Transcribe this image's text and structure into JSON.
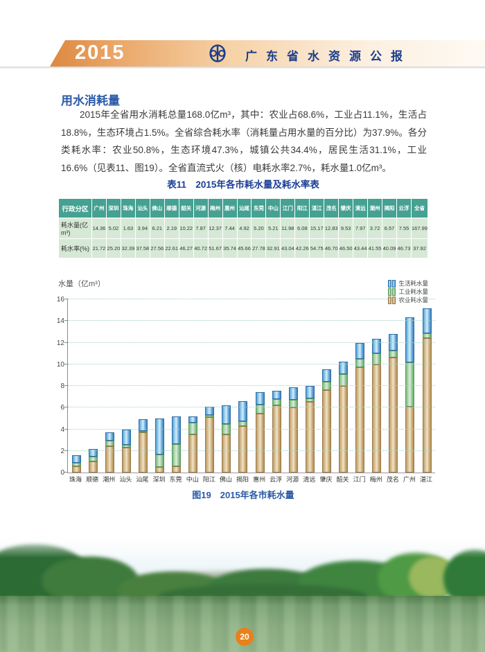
{
  "page": {
    "number": "20"
  },
  "header": {
    "year": "2015",
    "title": "广东省水资源公报",
    "logo": "water-bureau-logo"
  },
  "section": {
    "heading": "用水消耗量",
    "paragraph": "2015年全省用水消耗总量168.0亿m³，其中：农业占68.6%，工业占11.1%，生活占18.8%，生态环境占1.5%。全省综合耗水率（消耗量占用水量的百分比）为37.9%。各分类耗水率：农业50.8%，生态环境47.3%，城镇公共34.4%，居民生活31.1%，工业16.6%（见表11、图19）。全省直流式火（核）电耗水率2.7%，耗水量1.0亿m³。"
  },
  "table": {
    "title": "表11　2015年各市耗水量及耗水率表",
    "headers": [
      "行政分区",
      "广州",
      "深圳",
      "珠海",
      "汕头",
      "佛山",
      "顺德",
      "韶关",
      "河源",
      "梅州",
      "惠州",
      "汕尾",
      "东莞",
      "中山",
      "江门",
      "阳江",
      "湛江",
      "茂名",
      "肇庆",
      "清远",
      "潮州",
      "揭阳",
      "云浮",
      "全省"
    ],
    "rows": [
      {
        "label": "耗水量(亿m³)",
        "values": [
          "14.36",
          "5.02",
          "1.63",
          "3.94",
          "6.21",
          "2.19",
          "10.22",
          "7.87",
          "12.37",
          "7.44",
          "4.92",
          "5.20",
          "5.21",
          "11.98",
          "6.08",
          "15.17",
          "12.83",
          "9.53",
          "7.97",
          "3.72",
          "6.57",
          "7.55",
          "167.99"
        ]
      },
      {
        "label": "耗水率(%)",
        "values": [
          "21.72",
          "25.20",
          "32.39",
          "37.58",
          "27.56",
          "22.61",
          "46.27",
          "40.72",
          "51.67",
          "35.74",
          "45.66",
          "27.78",
          "32.91",
          "43.04",
          "42.26",
          "54.75",
          "46.70",
          "46.50",
          "43.44",
          "41.55",
          "40.09",
          "46.73",
          "37.92"
        ]
      }
    ]
  },
  "chart_data": {
    "type": "bar",
    "stacked": true,
    "title": "图19　2015年各市耗水量",
    "ylabel": "水量（亿m³）",
    "xlabel": "",
    "ylim": [
      0,
      16
    ],
    "ytick_step": 2,
    "grid": "horizontal-dotted",
    "legend_position": "top-right",
    "categories": [
      "珠海",
      "顺德",
      "潮州",
      "汕头",
      "汕尾",
      "深圳",
      "东莞",
      "中山",
      "阳江",
      "佛山",
      "揭阳",
      "惠州",
      "云浮",
      "河源",
      "清远",
      "肇庆",
      "韶关",
      "江门",
      "梅州",
      "茂名",
      "广州",
      "湛江"
    ],
    "series": [
      {
        "name": "农业耗水量",
        "color": "#d9c094",
        "values": [
          0.55,
          1.02,
          2.45,
          2.3,
          3.7,
          0.5,
          0.55,
          3.5,
          5.1,
          3.5,
          4.3,
          5.45,
          6.2,
          6.0,
          6.5,
          7.6,
          8.0,
          9.7,
          10.0,
          10.6,
          6.1,
          12.4
        ]
      },
      {
        "name": "工业耗水量",
        "color": "#b8dbba",
        "values": [
          0.38,
          0.47,
          0.5,
          0.28,
          0.15,
          1.15,
          2.05,
          1.1,
          0.2,
          0.98,
          0.45,
          0.8,
          0.6,
          0.7,
          0.35,
          0.77,
          1.1,
          0.78,
          1.0,
          0.65,
          4.1,
          0.45
        ]
      },
      {
        "name": "生活耗水量",
        "color": "#7fc4ea",
        "values": [
          0.7,
          0.7,
          0.77,
          1.36,
          1.07,
          3.37,
          2.6,
          0.61,
          0.78,
          1.73,
          1.82,
          1.19,
          0.75,
          1.17,
          1.12,
          1.16,
          1.12,
          1.5,
          1.37,
          1.58,
          4.16,
          2.32
        ]
      }
    ],
    "totals": [
      1.63,
      2.19,
      3.72,
      3.94,
      4.92,
      5.02,
      5.2,
      5.21,
      6.08,
      6.21,
      6.57,
      7.44,
      7.55,
      7.87,
      7.97,
      9.53,
      10.22,
      11.98,
      12.37,
      12.83,
      14.36,
      15.17
    ]
  },
  "figure": {
    "caption": "图19　2015年各市耗水量"
  },
  "colors": {
    "banner_orange": "#dd8840",
    "title_navy": "#1b3c8c",
    "heading_blue": "#2a5aa8",
    "table_header_bg": "#45a192",
    "table_row_bg": "#d6e9d6",
    "grid_teal": "#9fd2c8",
    "page_circle_orange": "#e8811c"
  }
}
